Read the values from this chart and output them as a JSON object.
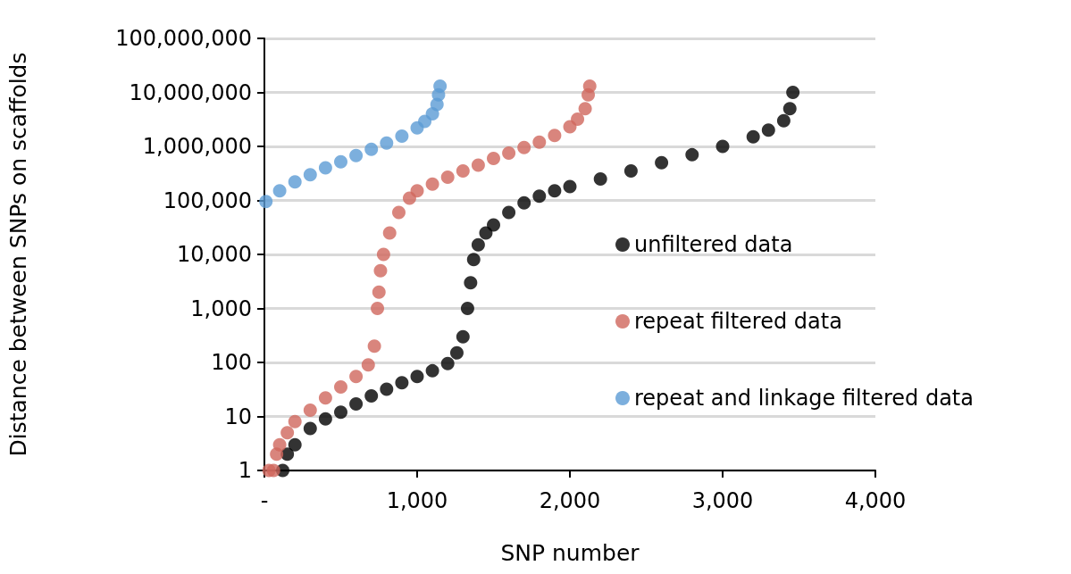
{
  "chart_data": {
    "type": "scatter",
    "xlabel": "SNP number",
    "ylabel": "Distance between SNPs on scaffolds",
    "log": "y",
    "grid": "y",
    "legend": "right",
    "marker": "circle",
    "xlim": [
      0,
      4000
    ],
    "xticks": [
      {
        "value": 0,
        "label": "-"
      },
      {
        "value": 1000,
        "label": "1,000"
      },
      {
        "value": 2000,
        "label": "2,000"
      },
      {
        "value": 3000,
        "label": "3,000"
      },
      {
        "value": 4000,
        "label": "4,000"
      }
    ],
    "ylim": [
      1,
      100000000
    ],
    "yticks": [
      {
        "value": 1,
        "label": "1"
      },
      {
        "value": 10,
        "label": "10"
      },
      {
        "value": 100,
        "label": "100"
      },
      {
        "value": 1000,
        "label": "1,000"
      },
      {
        "value": 10000,
        "label": "10,000"
      },
      {
        "value": 100000,
        "label": "100,000"
      },
      {
        "value": 1000000,
        "label": "1,000,000"
      },
      {
        "value": 10000000,
        "label": "10,000,000"
      },
      {
        "value": 100000000,
        "label": "100,000,000"
      }
    ],
    "series": [
      {
        "name": "unfiltered data",
        "color": "#000000",
        "x": [
          120,
          150,
          200,
          300,
          400,
          500,
          600,
          700,
          800,
          900,
          1000,
          1100,
          1200,
          1260,
          1300,
          1330,
          1350,
          1370,
          1400,
          1450,
          1500,
          1600,
          1700,
          1800,
          1900,
          2000,
          2200,
          2400,
          2600,
          2800,
          3000,
          3200,
          3300,
          3400,
          3440,
          3460
        ],
        "values": [
          1,
          2,
          3,
          6,
          9,
          12,
          17,
          24,
          32,
          42,
          55,
          70,
          95,
          150,
          300,
          1000,
          3000,
          8000,
          15000,
          25000,
          35000,
          60000,
          90000,
          120000,
          150000,
          180000,
          250000,
          350000,
          500000,
          700000,
          1000000,
          1500000,
          2000000,
          3000000,
          5000000,
          10000000
        ]
      },
      {
        "name": "repeat filtered data",
        "color": "#d0665c",
        "x": [
          30,
          60,
          80,
          100,
          150,
          200,
          300,
          400,
          500,
          600,
          680,
          720,
          740,
          750,
          760,
          780,
          820,
          880,
          950,
          1000,
          1100,
          1200,
          1300,
          1400,
          1500,
          1600,
          1700,
          1800,
          1900,
          2000,
          2050,
          2100,
          2120,
          2130
        ],
        "values": [
          1,
          1,
          2,
          3,
          5,
          8,
          13,
          22,
          35,
          55,
          90,
          200,
          1000,
          2000,
          5000,
          10000,
          25000,
          60000,
          110000,
          150000,
          200000,
          270000,
          350000,
          450000,
          600000,
          750000,
          950000,
          1200000,
          1600000,
          2300000,
          3200000,
          5000000,
          9000000,
          13000000
        ]
      },
      {
        "name": "repeat and linkage filtered data",
        "color": "#5b9bd5",
        "x": [
          10,
          100,
          200,
          300,
          400,
          500,
          600,
          700,
          800,
          900,
          1000,
          1050,
          1100,
          1130,
          1140,
          1150
        ],
        "values": [
          95000,
          150000,
          220000,
          300000,
          400000,
          520000,
          680000,
          880000,
          1150000,
          1550000,
          2200000,
          2900000,
          4000000,
          6000000,
          9000000,
          13000000
        ]
      }
    ]
  }
}
